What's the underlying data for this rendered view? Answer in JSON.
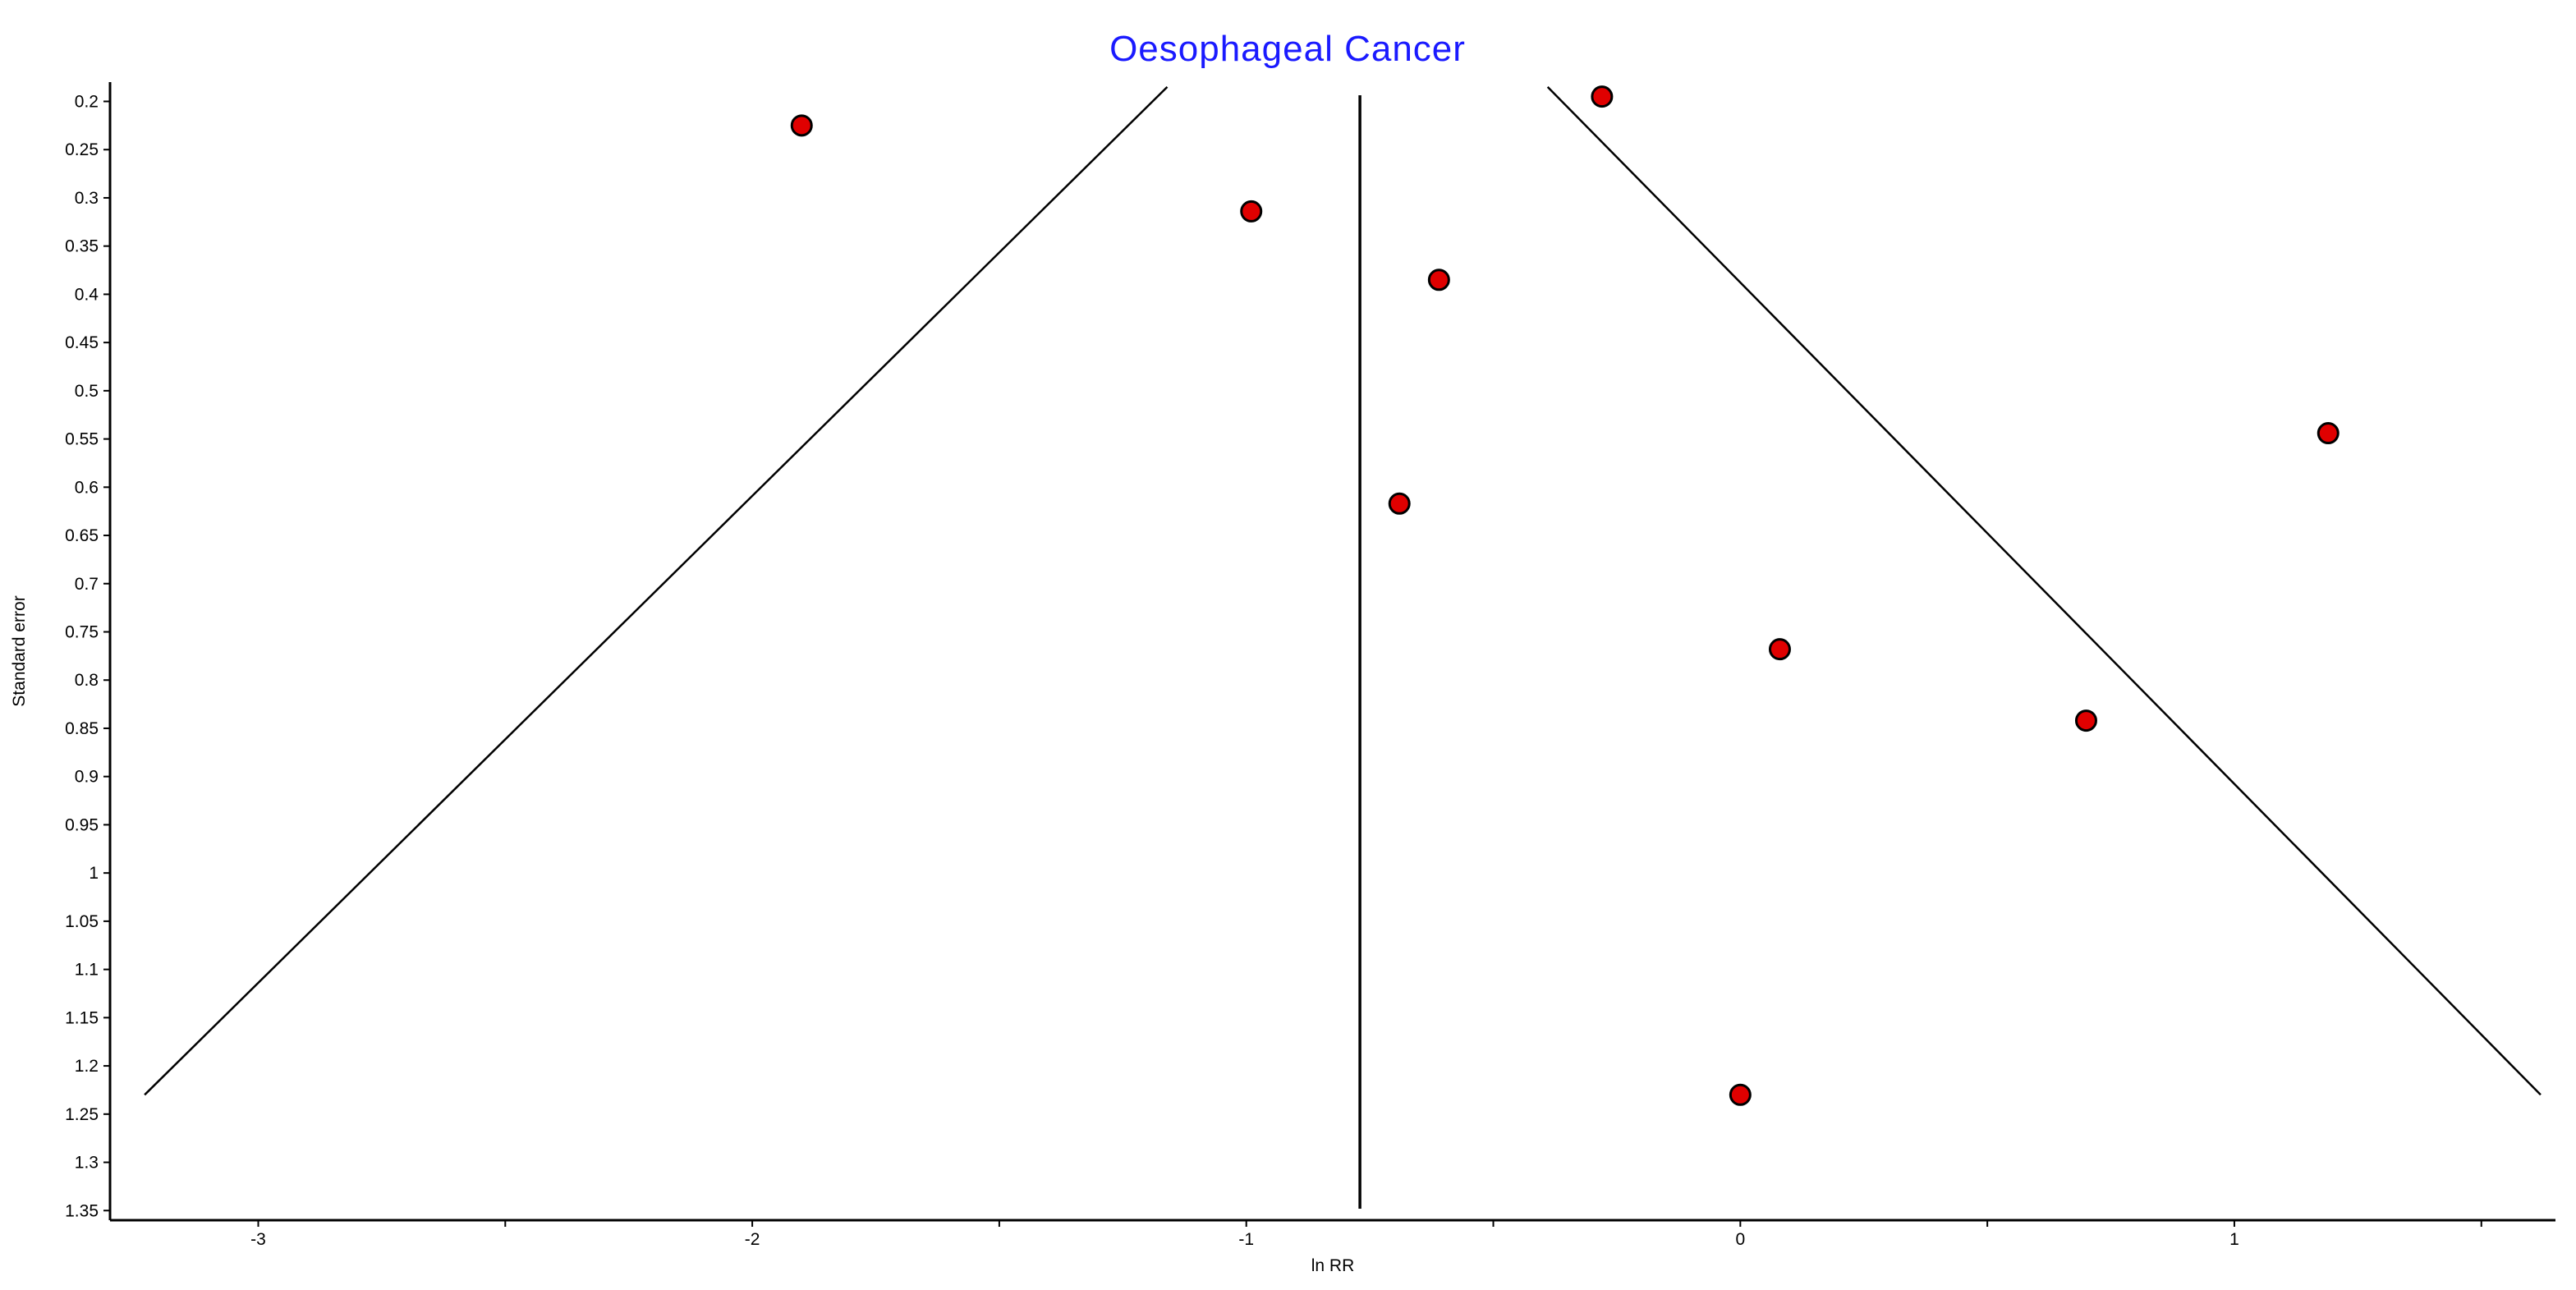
{
  "chart_data": {
    "type": "scatter",
    "title": "Oesophageal Cancer",
    "xlabel": "ln RR",
    "ylabel": "Standard error",
    "xlim": [
      -3.3,
      1.65
    ],
    "ylim": [
      0.18,
      1.36
    ],
    "y_inverted": true,
    "x_ticks": [
      -3,
      -2,
      -1,
      0,
      1
    ],
    "x_tick_labels": [
      "-3",
      "-2",
      "-1",
      "0",
      "1"
    ],
    "y_ticks": [
      0.2,
      0.25,
      0.3,
      0.35,
      0.4,
      0.45,
      0.5,
      0.55,
      0.6,
      0.65,
      0.7,
      0.75,
      0.8,
      0.85,
      0.9,
      0.95,
      1,
      1.05,
      1.1,
      1.15,
      1.2,
      1.25,
      1.3,
      1.35
    ],
    "y_tick_labels": [
      "0.2",
      "0.25",
      "0.3",
      "0.35",
      "0.4",
      "0.45",
      "0.5",
      "0.55",
      "0.6",
      "0.65",
      "0.7",
      "0.75",
      "0.8",
      "0.85",
      "0.9",
      "0.95",
      "1",
      "1.05",
      "1.1",
      "1.15",
      "1.2",
      "1.25",
      "1.3",
      "1.35"
    ],
    "points": [
      {
        "x": -1.9,
        "y": 0.225
      },
      {
        "x": -0.99,
        "y": 0.314
      },
      {
        "x": -0.28,
        "y": 0.195
      },
      {
        "x": -0.61,
        "y": 0.385
      },
      {
        "x": -0.69,
        "y": 0.617
      },
      {
        "x": 0.08,
        "y": 0.768
      },
      {
        "x": 0.7,
        "y": 0.842
      },
      {
        "x": 1.19,
        "y": 0.544
      },
      {
        "x": 0.0,
        "y": 1.23
      }
    ],
    "center_line_x": -0.77,
    "funnel_left": [
      {
        "x": -3.23,
        "y": 1.23
      },
      {
        "x": -1.16,
        "y": 0.185
      }
    ],
    "funnel_right": [
      {
        "x": -0.39,
        "y": 0.185
      },
      {
        "x": 1.62,
        "y": 1.23
      }
    ],
    "grid": false,
    "colors": {
      "point_fill": "#e00000",
      "point_stroke": "#000000",
      "title": "#1a1aff",
      "lines": "#000000"
    }
  }
}
